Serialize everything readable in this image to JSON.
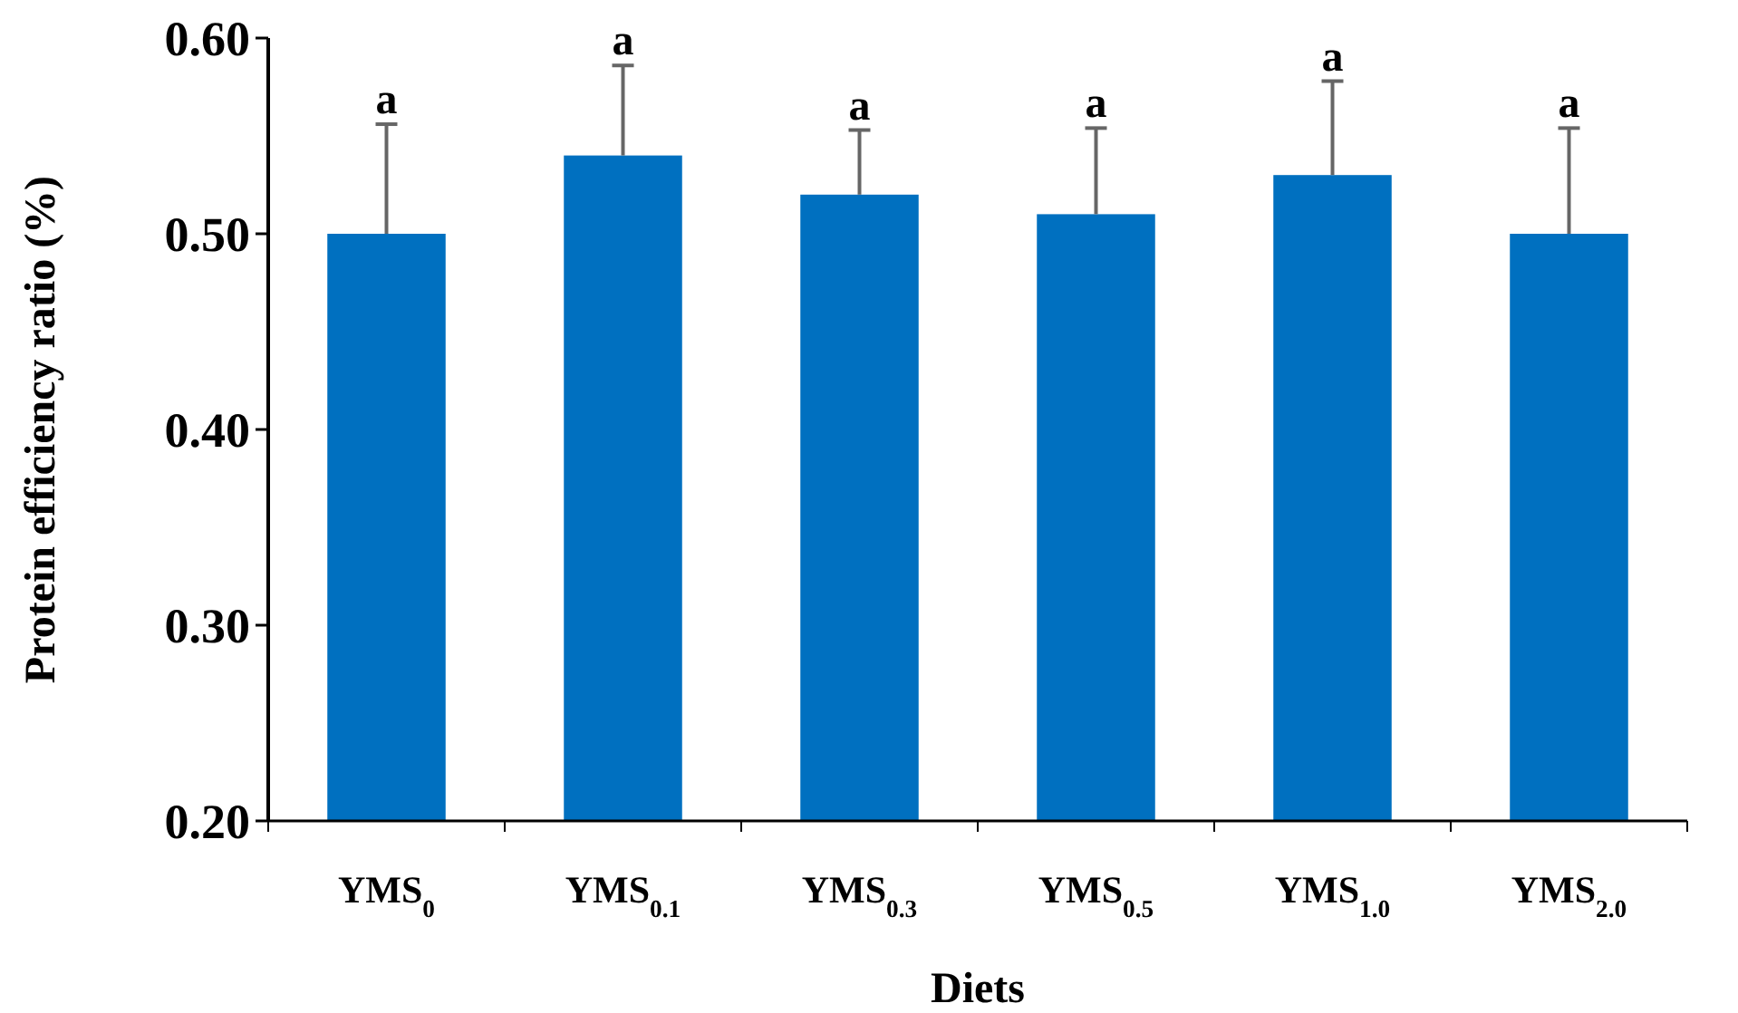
{
  "chart_data": {
    "type": "bar",
    "xlabel": "Diets",
    "ylabel": "Protein efficiency ratio  (%)",
    "categories": [
      "YMS$_{0}$",
      "YMS$_{0.1}$",
      "YMS$_{0.3}$",
      "YMS$_{0.5}$",
      "YMS$_{1.0}$",
      "YMS$_{2.0}$"
    ],
    "values": [
      0.5,
      0.54,
      0.52,
      0.51,
      0.53,
      0.5
    ],
    "errors": [
      0.056,
      0.046,
      0.033,
      0.044,
      0.048,
      0.054
    ],
    "color": "#0070c0",
    "ylim": [
      0.2,
      0.6
    ],
    "yticks": [
      {
        "value": 0.2,
        "label": "0.20"
      },
      {
        "value": 0.3,
        "label": "0.30"
      },
      {
        "value": 0.4,
        "label": "0.40"
      },
      {
        "value": 0.5,
        "label": "0.50"
      },
      {
        "value": 0.6,
        "label": "0.60"
      }
    ],
    "annotations": [
      {
        "text": "a",
        "x": "YMS$_{0}$",
        "y": 0.556
      },
      {
        "text": "a",
        "x": "YMS$_{0.1}$",
        "y": 0.586
      },
      {
        "text": "a",
        "x": "YMS$_{0.3}$",
        "y": 0.553
      },
      {
        "text": "a",
        "x": "YMS$_{0.5}$",
        "y": 0.554
      },
      {
        "text": "a",
        "x": "YMS$_{1.0}$",
        "y": 0.578
      },
      {
        "text": "a",
        "x": "YMS$_{2.0}$",
        "y": 0.554
      }
    ],
    "grid": false
  }
}
